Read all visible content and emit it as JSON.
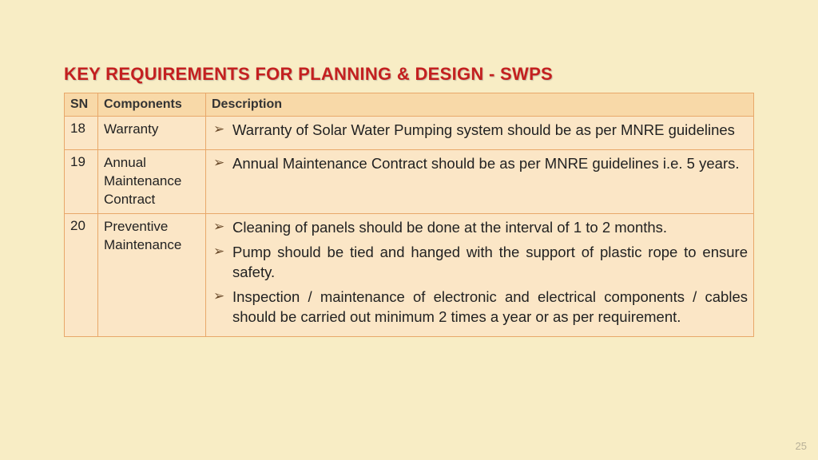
{
  "title": "KEY REQUIREMENTS FOR PLANNING & DESIGN - SWPS",
  "headers": {
    "sn": "SN",
    "components": "Components",
    "description": "Description"
  },
  "rows": {
    "r0": {
      "sn": "18",
      "component": "Warranty",
      "d0": "Warranty of Solar Water Pumping system should be as per MNRE guidelines"
    },
    "r1": {
      "sn": "19",
      "component": "Annual Maintenance Contract",
      "d0": "Annual Maintenance Contract should be as per MNRE guidelines i.e. 5 years."
    },
    "r2": {
      "sn": "20",
      "component": "Preventive Maintenance",
      "d0": "Cleaning of panels should be done at the interval of 1 to 2 months.",
      "d1": "Pump should be tied and hanged with the support of plastic rope to ensure safety.",
      "d2": "Inspection / maintenance of electronic and electrical components / cables  should be carried out minimum 2 times a year or as per requirement."
    }
  },
  "pageNumber": "25"
}
